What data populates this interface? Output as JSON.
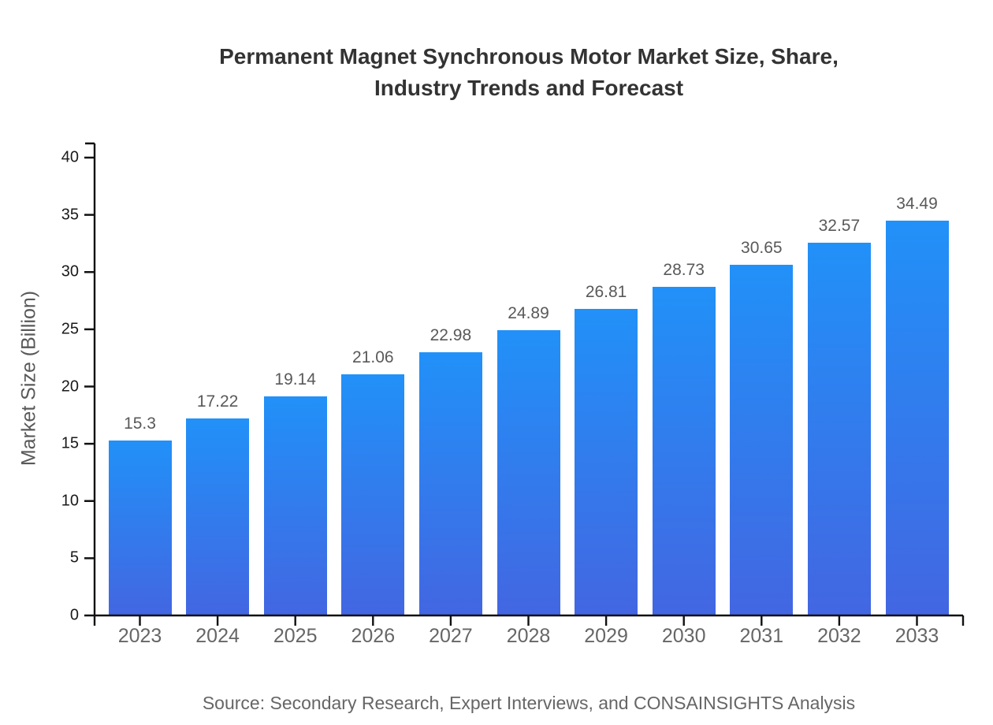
{
  "title_lines": [
    "Permanent Magnet Synchronous Motor Market Size, Share,",
    "Industry Trends and Forecast"
  ],
  "source_note": "Source: Secondary Research, Expert Interviews, and CONSAINSIGHTS Analysis",
  "chart_data": {
    "type": "bar",
    "title": "Permanent Magnet Synchronous Motor Market Size, Share, Industry Trends and Forecast",
    "xlabel": "",
    "ylabel": "Market Size (Billion)",
    "categories": [
      "2023",
      "2024",
      "2025",
      "2026",
      "2027",
      "2028",
      "2029",
      "2030",
      "2031",
      "2032",
      "2033"
    ],
    "values": [
      15.3,
      17.22,
      19.14,
      21.06,
      22.98,
      24.89,
      26.81,
      28.73,
      30.65,
      32.57,
      34.49
    ],
    "value_labels": [
      "15.3",
      "17.22",
      "19.14",
      "21.06",
      "22.98",
      "24.89",
      "26.81",
      "28.73",
      "30.65",
      "32.57",
      "34.49"
    ],
    "yticks": [
      0,
      5,
      10,
      15,
      20,
      25,
      30,
      35,
      40
    ],
    "ylim": [
      0,
      41.2
    ],
    "grid": false,
    "legend": false
  },
  "colors": {
    "bar_gradient_top": "#2191F8",
    "bar_gradient_bottom": "#4366E2",
    "title": "#333333",
    "value_label": "#595959",
    "x_tick_label": "#666666",
    "y_tick_label": "#1a1a1a",
    "y_axis_title": "#595959",
    "axis_line": "#111111",
    "source": "#666666",
    "background": "#ffffff"
  }
}
